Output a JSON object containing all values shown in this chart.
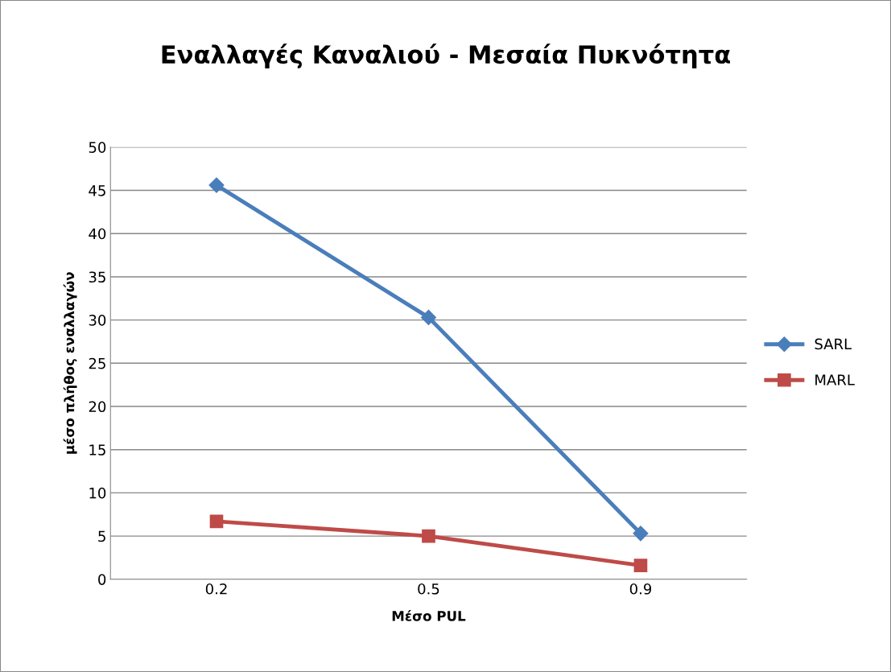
{
  "chart_data": {
    "type": "line",
    "title": "Εναλλαγές Καναλιού - Μεσαία Πυκνότητα",
    "xlabel": "Μέσο PUL",
    "ylabel": "μέσο πλήθος εναλλαγών",
    "categories": [
      "0.2",
      "0.5",
      "0.9"
    ],
    "series": [
      {
        "name": "SARL",
        "color": "#4a7ebb",
        "marker": "diamond",
        "values": [
          45.6,
          30.3,
          5.3
        ]
      },
      {
        "name": "MARL",
        "color": "#be4b48",
        "marker": "square",
        "values": [
          6.7,
          5.0,
          1.6
        ]
      }
    ],
    "ylim": [
      0,
      50
    ],
    "yticks": [
      0,
      5,
      10,
      15,
      20,
      25,
      30,
      35,
      40,
      45,
      50
    ],
    "grid": "y",
    "legend": "right",
    "line_style": "solid"
  }
}
